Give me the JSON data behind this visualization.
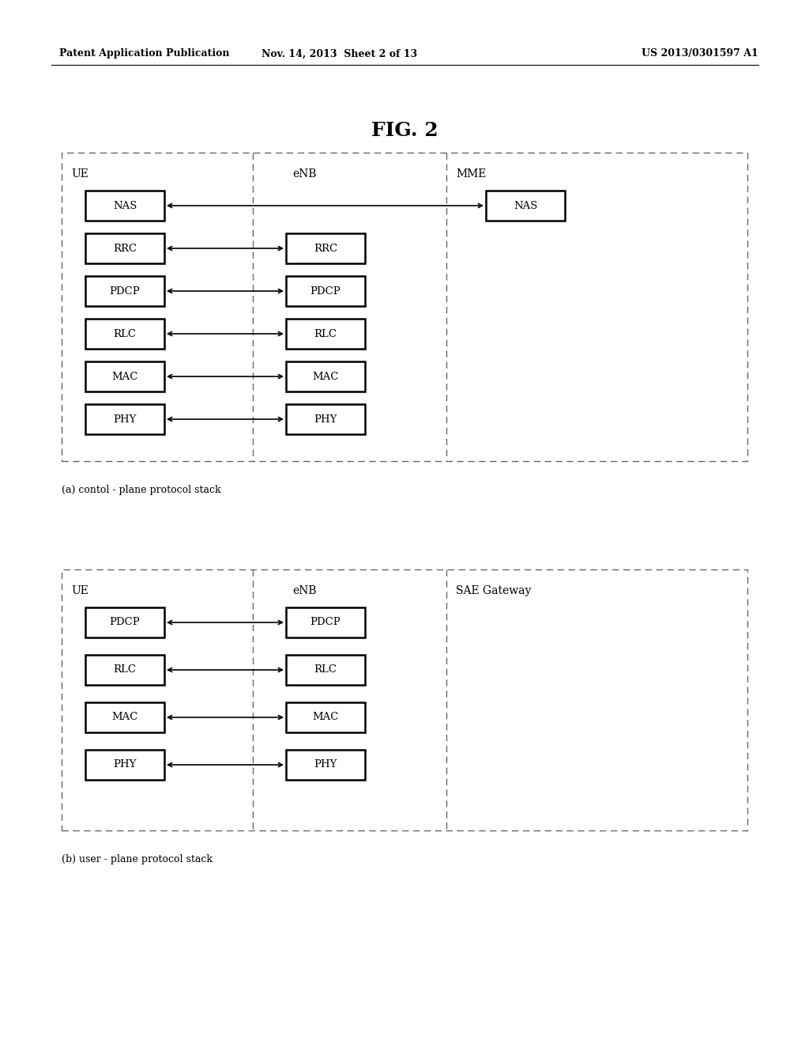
{
  "bg_color": "#ffffff",
  "header_left": "Patent Application Publication",
  "header_mid": "Nov. 14, 2013  Sheet 2 of 13",
  "header_right": "US 2013/0301597 A1",
  "fig_title": "FIG. 2",
  "diagram_a": {
    "caption": "(a) contol - plane protocol stack",
    "ue_blocks": [
      "NAS",
      "RRC",
      "PDCP",
      "RLC",
      "MAC",
      "PHY"
    ],
    "enb_blocks": [
      "RRC",
      "PDCP",
      "RLC",
      "MAC",
      "PHY"
    ],
    "mme_blocks": [
      "NAS"
    ]
  },
  "diagram_b": {
    "caption": "(b) user - plane protocol stack",
    "ue_blocks": [
      "PDCP",
      "RLC",
      "MAC",
      "PHY"
    ],
    "enb_blocks": [
      "PDCP",
      "RLC",
      "MAC",
      "PHY"
    ]
  }
}
